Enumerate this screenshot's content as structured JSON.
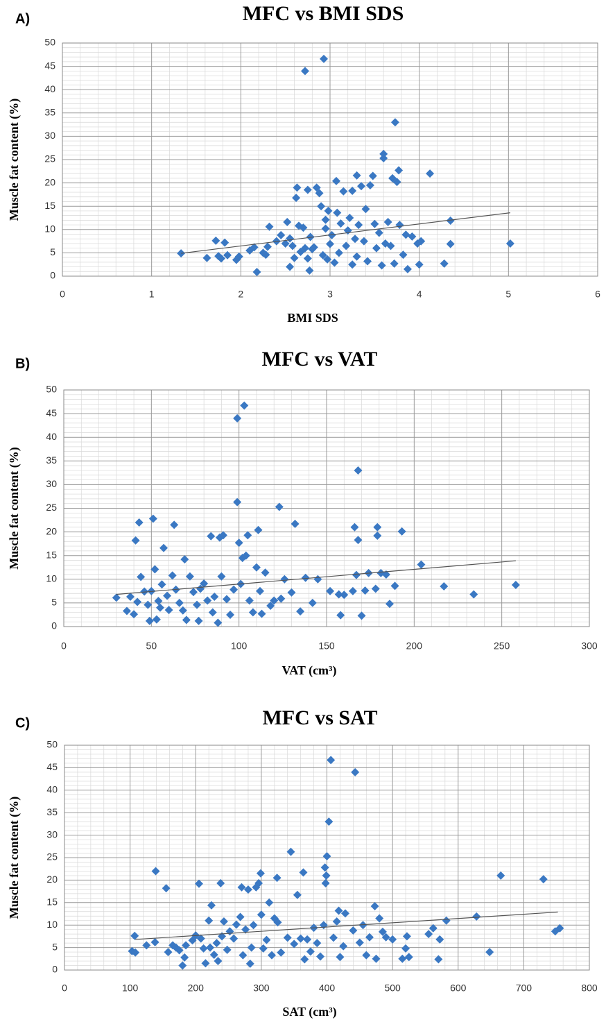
{
  "chart_data": [
    {
      "type": "scatter",
      "panel": "A)",
      "title": "MFC vs BMI SDS",
      "xlabel": "BMI SDS",
      "ylabel": "Muscle fat content (%)",
      "color": "#3a78c3",
      "grid": true,
      "minor_grid": 5,
      "xlim": [
        0,
        6
      ],
      "xticks": [
        0,
        1,
        2,
        3,
        4,
        5,
        6
      ],
      "ylim": [
        0,
        50
      ],
      "yticks": [
        0,
        5,
        10,
        15,
        20,
        25,
        30,
        35,
        40,
        45,
        50
      ],
      "x": [
        1.33,
        1.62,
        1.72,
        1.75,
        1.78,
        1.82,
        1.85,
        1.95,
        1.98,
        2.1,
        2.15,
        2.18,
        2.25,
        2.28,
        2.3,
        2.32,
        2.4,
        2.45,
        2.5,
        2.52,
        2.55,
        2.55,
        2.58,
        2.6,
        2.62,
        2.63,
        2.65,
        2.67,
        2.7,
        2.72,
        2.72,
        2.75,
        2.75,
        2.77,
        2.78,
        2.8,
        2.82,
        2.85,
        2.88,
        2.9,
        2.92,
        2.93,
        2.95,
        2.95,
        2.97,
        2.98,
        3.0,
        3.02,
        3.05,
        3.07,
        3.08,
        3.1,
        3.12,
        3.15,
        3.18,
        3.2,
        3.22,
        3.25,
        3.25,
        3.28,
        3.3,
        3.3,
        3.32,
        3.35,
        3.38,
        3.4,
        3.42,
        3.45,
        3.48,
        3.5,
        3.52,
        3.55,
        3.58,
        3.6,
        3.6,
        3.62,
        3.65,
        3.68,
        3.7,
        3.72,
        3.73,
        3.75,
        3.77,
        3.78,
        3.82,
        3.85,
        3.87,
        3.92,
        3.98,
        4.0,
        4.02,
        4.12,
        4.28,
        4.35,
        4.35,
        5.02
      ],
      "values": [
        4.9,
        3.9,
        7.6,
        4.3,
        3.8,
        7.2,
        4.5,
        3.5,
        4.2,
        5.5,
        6.2,
        0.9,
        5.0,
        4.6,
        6.3,
        10.6,
        7.5,
        8.8,
        7.0,
        11.6,
        2.0,
        8.1,
        6.5,
        3.9,
        16.8,
        19.0,
        10.8,
        5.2,
        10.4,
        44.0,
        6.0,
        18.5,
        3.8,
        1.2,
        8.4,
        5.8,
        6.2,
        19.0,
        17.8,
        15.0,
        4.5,
        46.6,
        12.1,
        10.2,
        3.6,
        14.0,
        6.9,
        8.8,
        2.9,
        20.4,
        13.6,
        5.0,
        11.3,
        18.2,
        6.5,
        9.8,
        12.5,
        18.3,
        2.5,
        8.0,
        21.6,
        4.2,
        11.0,
        19.3,
        7.5,
        14.4,
        3.2,
        19.5,
        21.5,
        11.2,
        6.0,
        9.3,
        2.3,
        26.2,
        25.3,
        7.0,
        11.6,
        6.5,
        21.0,
        2.7,
        33.0,
        20.2,
        22.7,
        11.0,
        4.6,
        8.9,
        1.5,
        8.5,
        7.0,
        2.5,
        7.5,
        22.0,
        2.7,
        6.9,
        11.9,
        7.0
      ],
      "trendline": {
        "color": "#555555",
        "x": [
          1.33,
          5.02
        ],
        "y": [
          4.9,
          13.6
        ]
      }
    },
    {
      "type": "scatter",
      "panel": "B)",
      "title": "MFC vs VAT",
      "xlabel": "VAT (cm³)",
      "ylabel": "Muscle fat content (%)",
      "color": "#3a78c3",
      "grid": true,
      "minor_grid": 5,
      "xlim": [
        0,
        300
      ],
      "xticks": [
        0,
        50,
        100,
        150,
        200,
        250,
        300
      ],
      "ylim": [
        0,
        50
      ],
      "yticks": [
        0,
        5,
        10,
        15,
        20,
        25,
        30,
        35,
        40,
        45,
        50
      ],
      "x": [
        30,
        36,
        38,
        40,
        41,
        42,
        43,
        44,
        46,
        48,
        49,
        50,
        51,
        52,
        53,
        54,
        55,
        56,
        57,
        59,
        60,
        62,
        63,
        64,
        66,
        68,
        69,
        70,
        72,
        74,
        76,
        77,
        78,
        80,
        82,
        84,
        85,
        86,
        88,
        89,
        90,
        91,
        93,
        95,
        97,
        99,
        99,
        100,
        101,
        102,
        103,
        104,
        105,
        106,
        108,
        110,
        111,
        112,
        113,
        115,
        118,
        120,
        123,
        124,
        126,
        130,
        132,
        135,
        138,
        142,
        145,
        152,
        157,
        158,
        160,
        165,
        166,
        167,
        168,
        168,
        170,
        172,
        174,
        178,
        179,
        179,
        181,
        184,
        186,
        189,
        193,
        204,
        217,
        234,
        258
      ],
      "values": [
        6.1,
        3.3,
        6.3,
        2.6,
        18.2,
        5.2,
        22.0,
        10.5,
        7.4,
        4.6,
        1.2,
        7.5,
        22.8,
        12.1,
        1.5,
        5.4,
        4.0,
        8.9,
        16.6,
        6.5,
        3.5,
        10.8,
        21.5,
        7.8,
        5.0,
        3.4,
        14.2,
        1.4,
        10.6,
        7.3,
        4.6,
        1.2,
        8.0,
        9.1,
        5.5,
        19.1,
        3.0,
        6.3,
        0.8,
        18.8,
        10.6,
        19.3,
        5.8,
        2.5,
        7.8,
        44.0,
        26.3,
        17.7,
        9.0,
        14.5,
        46.7,
        15.0,
        19.3,
        5.5,
        3.0,
        12.5,
        20.4,
        7.5,
        2.7,
        11.4,
        4.4,
        5.5,
        25.3,
        5.9,
        10.0,
        7.2,
        21.7,
        3.2,
        10.3,
        5.0,
        10.0,
        7.5,
        6.8,
        2.4,
        6.7,
        7.5,
        21.0,
        10.9,
        33.0,
        18.3,
        2.3,
        7.6,
        11.3,
        8.0,
        21.0,
        19.2,
        11.3,
        11.0,
        4.8,
        8.6,
        20.1,
        13.1,
        8.5,
        6.8,
        8.8
      ],
      "trendline": {
        "color": "#555555",
        "x": [
          30,
          258
        ],
        "y": [
          6.8,
          13.9
        ]
      }
    },
    {
      "type": "scatter",
      "panel": "C)",
      "title": "MFC vs SAT",
      "xlabel": "SAT (cm³)",
      "ylabel": "Muscle fat content (%)",
      "color": "#3a78c3",
      "grid": true,
      "minor_grid": 5,
      "xlim": [
        0,
        800
      ],
      "xticks": [
        0,
        100,
        200,
        300,
        400,
        500,
        600,
        700,
        800
      ],
      "ylim": [
        0,
        50
      ],
      "yticks": [
        0,
        5,
        10,
        15,
        20,
        25,
        30,
        35,
        40,
        45,
        50
      ],
      "x": [
        103,
        107,
        108,
        125,
        138,
        139,
        155,
        158,
        165,
        170,
        175,
        180,
        183,
        185,
        195,
        200,
        205,
        208,
        212,
        215,
        220,
        222,
        224,
        228,
        232,
        234,
        238,
        240,
        243,
        248,
        252,
        258,
        262,
        268,
        270,
        272,
        276,
        280,
        283,
        285,
        288,
        292,
        296,
        299,
        300,
        303,
        308,
        312,
        316,
        320,
        324,
        325,
        330,
        340,
        345,
        350,
        355,
        360,
        364,
        366,
        370,
        375,
        380,
        385,
        390,
        395,
        397,
        398,
        399,
        400,
        403,
        406,
        410,
        415,
        418,
        420,
        425,
        428,
        440,
        443,
        450,
        455,
        460,
        465,
        473,
        475,
        480,
        485,
        490,
        500,
        515,
        520,
        522,
        525,
        555,
        562,
        570,
        572,
        582,
        628,
        648,
        665,
        730,
        748,
        755
      ],
      "values": [
        4.2,
        7.6,
        3.9,
        5.5,
        6.2,
        22.0,
        18.2,
        4.0,
        5.5,
        5.0,
        4.4,
        1.0,
        2.8,
        5.5,
        6.6,
        7.7,
        19.2,
        7.0,
        4.8,
        1.5,
        11.0,
        5.0,
        14.4,
        3.4,
        6.0,
        2.0,
        19.3,
        7.5,
        10.8,
        4.5,
        8.6,
        7.0,
        10.1,
        11.8,
        18.4,
        3.3,
        9.0,
        17.9,
        1.4,
        5.0,
        10.0,
        18.4,
        19.3,
        21.5,
        12.3,
        4.8,
        6.7,
        15.0,
        3.3,
        11.5,
        20.5,
        10.6,
        3.9,
        7.2,
        26.3,
        5.8,
        16.7,
        7.0,
        21.7,
        2.4,
        6.8,
        4.1,
        9.4,
        6.0,
        3.0,
        10.0,
        22.8,
        19.3,
        21.0,
        25.3,
        33.0,
        46.7,
        7.2,
        10.8,
        13.2,
        2.9,
        5.3,
        12.6,
        8.8,
        44.0,
        6.1,
        10.0,
        3.3,
        7.3,
        14.2,
        2.5,
        11.5,
        8.5,
        7.3,
        6.8,
        2.5,
        4.8,
        7.5,
        2.9,
        8.0,
        9.3,
        2.4,
        6.8,
        11.0,
        11.9,
        4.0,
        21.0,
        20.2,
        8.6,
        9.3
      ],
      "trendline": {
        "color": "#555555",
        "x": [
          108,
          752
        ],
        "y": [
          6.8,
          12.9
        ]
      }
    }
  ]
}
